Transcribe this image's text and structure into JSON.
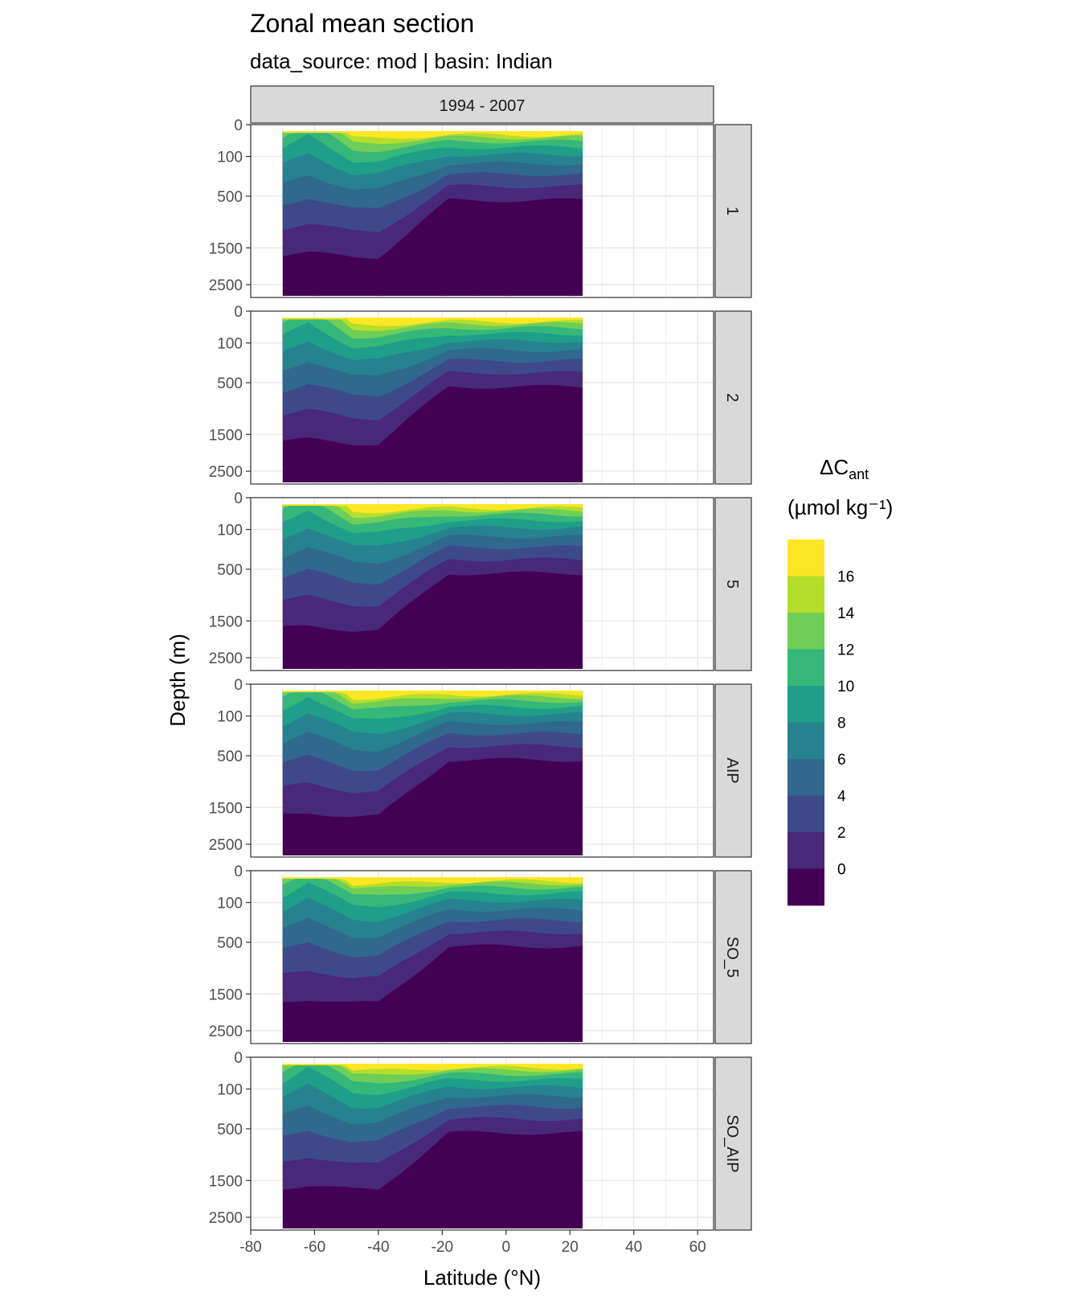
{
  "chart_data": {
    "type": "heatmap",
    "title": "Zonal mean section",
    "subtitle": "data_source:  mod | basin: Indian",
    "xlabel": "Latitude (°N)",
    "ylabel": "Depth (m)",
    "x_ticks": [
      -80,
      -60,
      -40,
      -20,
      0,
      20,
      40,
      60
    ],
    "x_range": [
      -80,
      65
    ],
    "x_data_extent": [
      -70,
      24
    ],
    "y_ticks": [
      0,
      100,
      500,
      1500,
      2500
    ],
    "y_reversed": true,
    "column_strip": "1994 - 2007",
    "row_panels": [
      "1",
      "2",
      "5",
      "AIP",
      "SO_5",
      "SO_AIP"
    ],
    "legend": {
      "title_main": "ΔC",
      "title_sub": "ant",
      "title_unit": "(µmol kg⁻¹)",
      "breaks": [
        "16",
        "14",
        "12",
        "10",
        "8",
        "6",
        "4",
        "2",
        "0"
      ],
      "colors": [
        "#fde725",
        "#b5de2b",
        "#6ece58",
        "#35b779",
        "#1f9e89",
        "#26828e",
        "#31688e",
        "#3e4989",
        "#482878",
        "#440154"
      ],
      "placement": "right"
    },
    "grid": true
  }
}
